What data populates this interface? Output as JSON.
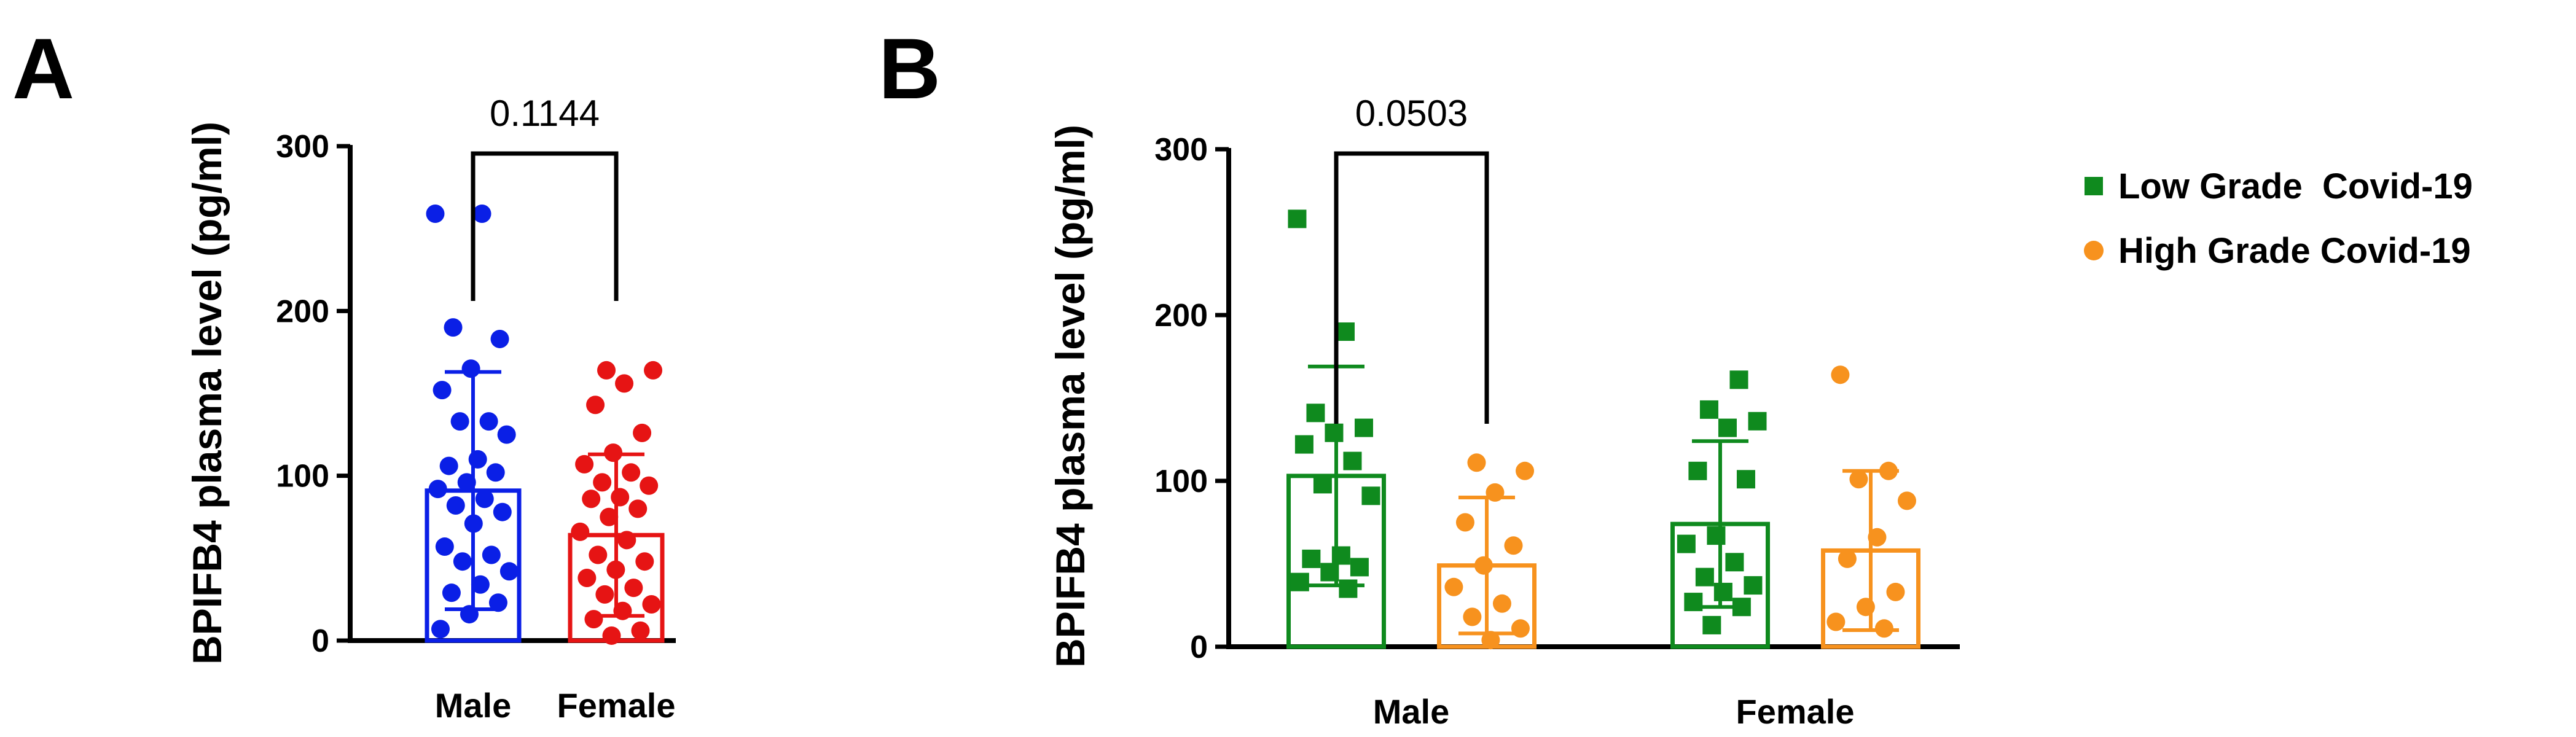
{
  "chart_data": [
    {
      "panel": "A",
      "type": "bar",
      "ylabel": "BPIFB4 plasma level (pg/ml)",
      "ylim": [
        0,
        300
      ],
      "yticks": [
        "0",
        "100",
        "200",
        "300"
      ],
      "categories": [
        "Male",
        "Female"
      ],
      "series": [
        {
          "categories": [
            "Male",
            "Female"
          ],
          "colors": [
            "#0a1fe6",
            "#e61414"
          ],
          "marker": "circle",
          "values": [
            91,
            64
          ],
          "error": [
            72,
            49
          ],
          "points": [
            [
              259,
              259,
              190,
              183,
              165,
              152,
              133,
              133,
              125,
              110,
              106,
              102,
              96,
              92,
              86,
              82,
              78,
              71,
              57,
              52,
              48,
              42,
              34,
              29,
              23,
              16,
              7
            ],
            [
              164,
              164,
              156,
              143,
              126,
              114,
              107,
              102,
              96,
              94,
              87,
              86,
              80,
              75,
              66,
              61,
              52,
              48,
              43,
              38,
              32,
              28,
              22,
              18,
              13,
              6,
              3
            ]
          ]
        }
      ],
      "annotation": {
        "pairs": [
          "Male",
          "Female"
        ],
        "text": "0.1144"
      }
    },
    {
      "panel": "B",
      "type": "bar",
      "ylabel": "BPIFB4 plasma level (pg/ml)",
      "ylim": [
        0,
        300
      ],
      "yticks": [
        "0",
        "100",
        "200",
        "300"
      ],
      "categories": [
        "Male",
        "Female"
      ],
      "series": [
        {
          "name": "Low Grade  Covid-19",
          "color": "#0f8a1e",
          "marker": "square",
          "values": [
            103,
            74
          ],
          "error": [
            66,
            50
          ],
          "points": [
            [
              258,
              190,
              141,
              132,
              129,
              122,
              112,
              98,
              91,
              55,
              53,
              48,
              45,
              39,
              35
            ],
            [
              161,
              143,
              136,
              132,
              106,
              101,
              67,
              62,
              51,
              42,
              37,
              33,
              27,
              24,
              13
            ]
          ]
        },
        {
          "name": "High Grade Covid-19",
          "color": "#f7921e",
          "marker": "circle",
          "values": [
            49,
            58
          ],
          "error": [
            41,
            48
          ],
          "points": [
            [
              111,
              106,
              93,
              75,
              61,
              49,
              36,
              26,
              18,
              11,
              4
            ],
            [
              164,
              106,
              101,
              88,
              66,
              53,
              33,
              24,
              15,
              11
            ]
          ]
        }
      ],
      "annotation": {
        "pairs": [
          "Male/Low Grade",
          "Male/High Grade"
        ],
        "text": "0.0503"
      }
    }
  ],
  "legend": [
    {
      "label": "Low Grade  Covid-19",
      "color": "#0f8a1e",
      "marker": "square"
    },
    {
      "label": "High Grade Covid-19",
      "color": "#f7921e",
      "marker": "circle"
    }
  ]
}
